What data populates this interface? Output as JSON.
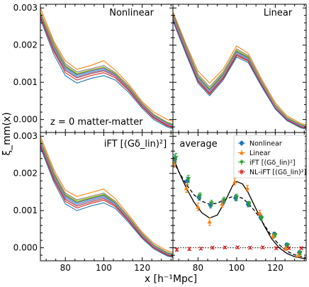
{
  "chart_data": {
    "type": "line",
    "ylabel": "ξ_mm(x)",
    "xlabel": "x [h⁻¹Mpc]",
    "xlim": [
      67,
      136
    ],
    "ylim": [
      -0.00035,
      0.0031
    ],
    "xticks": [
      80,
      100,
      120
    ],
    "xtick_labels": [
      "80",
      "100",
      "120"
    ],
    "yticks": [
      0,
      0.001,
      0.002,
      0.003
    ],
    "ytick_labels": [
      "0.000",
      "0.001",
      "0.002",
      "0.003"
    ],
    "annotation": "z = 0  matter-matter",
    "panels": [
      {
        "title": "Nonlinear",
        "x": [
          67,
          74,
          80,
          86,
          93,
          100,
          106,
          113,
          120,
          126,
          133,
          136
        ],
        "series": [
          {
            "color": "#ff7f0e",
            "values": [
              0.003,
              0.0021,
              0.00158,
              0.00135,
              0.00145,
              0.00158,
              0.00133,
              0.00095,
              0.00048,
              0.0002,
              0.0,
              -5e-05
            ]
          },
          {
            "color": "#7f7f7f",
            "values": [
              0.0029,
              0.00205,
              0.0015,
              0.00128,
              0.00136,
              0.00145,
              0.00126,
              0.0009,
              0.00044,
              0.00014,
              -7e-05,
              -0.00012
            ]
          },
          {
            "color": "#bcbd22",
            "values": [
              0.0029,
              0.00202,
              0.00146,
              0.00124,
              0.00133,
              0.00141,
              0.00124,
              0.00088,
              0.00042,
              0.00012,
              -9e-05,
              -0.00014
            ]
          },
          {
            "color": "#2ca02c",
            "values": [
              0.00285,
              0.00198,
              0.00143,
              0.00122,
              0.00131,
              0.00139,
              0.00122,
              0.00086,
              0.00041,
              0.00011,
              -0.0001,
              -0.00015
            ]
          },
          {
            "color": "#9467bd",
            "values": [
              0.00283,
              0.00196,
              0.00141,
              0.0012,
              0.0013,
              0.00138,
              0.00121,
              0.00085,
              0.0004,
              0.0001,
              -0.00011,
              -0.00016
            ]
          },
          {
            "color": "#17becf",
            "values": [
              0.0028,
              0.00193,
              0.00138,
              0.00117,
              0.00127,
              0.00135,
              0.00119,
              0.00084,
              0.00039,
              9e-05,
              -0.00012,
              -0.00017
            ]
          },
          {
            "color": "#e377c2",
            "values": [
              0.0028,
              0.0019,
              0.00135,
              0.00114,
              0.00125,
              0.00133,
              0.00118,
              0.00083,
              0.00038,
              8e-05,
              -0.00013,
              -0.00018
            ]
          },
          {
            "color": "#8c564b",
            "values": [
              0.00278,
              0.00187,
              0.00132,
              0.00112,
              0.00123,
              0.00131,
              0.00116,
              0.00081,
              0.00036,
              6e-05,
              -0.00015,
              -0.0002
            ]
          },
          {
            "color": "#d62728",
            "values": [
              0.00275,
              0.00183,
              0.00126,
              0.00106,
              0.00118,
              0.00126,
              0.00112,
              0.00078,
              0.00034,
              4e-05,
              -0.00017,
              -0.00022
            ]
          },
          {
            "color": "#1f77b4",
            "values": [
              0.0027,
              0.00175,
              0.00118,
              0.00098,
              0.0011,
              0.00118,
              0.00106,
              0.00073,
              0.0003,
              0.0,
              -0.0002,
              -0.00025
            ]
          }
        ]
      },
      {
        "title": "Linear",
        "x": [
          67,
          74,
          80,
          86,
          93,
          100,
          106,
          113,
          120,
          126,
          133,
          136
        ],
        "series": [
          {
            "color": "#ff7f0e",
            "values": [
              0.0029,
              0.002,
              0.0013,
              0.00098,
              0.00135,
              0.00198,
              0.00178,
              0.00108,
              0.00045,
              0.0001,
              -0.0001,
              -0.00014
            ]
          },
          {
            "color": "#7f7f7f",
            "values": [
              0.00285,
              0.00195,
              0.00122,
              0.00088,
              0.00128,
              0.0019,
              0.00172,
              0.00103,
              0.0004,
              6e-05,
              -0.00013,
              -0.00017
            ]
          },
          {
            "color": "#bcbd22",
            "values": [
              0.0028,
              0.00192,
              0.00118,
              0.00084,
              0.00125,
              0.00187,
              0.00169,
              0.00101,
              0.00038,
              5e-05,
              -0.00014,
              -0.00018
            ]
          },
          {
            "color": "#2ca02c",
            "values": [
              0.0028,
              0.0019,
              0.00115,
              0.00081,
              0.00122,
              0.00184,
              0.00167,
              0.00099,
              0.00036,
              4e-05,
              -0.00015,
              -0.00019
            ]
          },
          {
            "color": "#9467bd",
            "values": [
              0.00278,
              0.00188,
              0.00113,
              0.00079,
              0.0012,
              0.00182,
              0.00165,
              0.00098,
              0.00035,
              3e-05,
              -0.00016,
              -0.0002
            ]
          },
          {
            "color": "#17becf",
            "values": [
              0.00275,
              0.00185,
              0.0011,
              0.00076,
              0.00118,
              0.0018,
              0.00163,
              0.00096,
              0.00034,
              2e-05,
              -0.00017,
              -0.00021
            ]
          },
          {
            "color": "#e377c2",
            "values": [
              0.00273,
              0.00183,
              0.00108,
              0.00074,
              0.00116,
              0.00178,
              0.00161,
              0.00095,
              0.00033,
              1e-05,
              -0.00018,
              -0.00022
            ]
          },
          {
            "color": "#8c564b",
            "values": [
              0.0027,
              0.0018,
              0.00105,
              0.00071,
              0.00113,
              0.00175,
              0.00159,
              0.00093,
              0.00031,
              0.0,
              -0.00019,
              -0.00023
            ]
          },
          {
            "color": "#d62728",
            "values": [
              0.00268,
              0.00177,
              0.00102,
              0.00068,
              0.0011,
              0.00172,
              0.00157,
              0.00091,
              0.0003,
              -1e-05,
              -0.0002,
              -0.00024
            ]
          },
          {
            "color": "#1f77b4",
            "values": [
              0.00265,
              0.00173,
              0.00098,
              0.00064,
              0.00106,
              0.00168,
              0.00153,
              0.00088,
              0.00028,
              -3e-05,
              -0.00022,
              -0.00026
            ]
          }
        ]
      },
      {
        "title": "iFT [(Gδ_lin)²]",
        "x": [
          67,
          74,
          80,
          86,
          93,
          100,
          106,
          113,
          120,
          126,
          133,
          136
        ],
        "series": [
          {
            "color": "#ff7f0e",
            "values": [
              0.003,
              0.0021,
              0.00155,
              0.00138,
              0.00148,
              0.00158,
              0.00132,
              0.00088,
              0.00042,
              0.00012,
              -8e-05,
              -0.00012
            ]
          },
          {
            "color": "#7f7f7f",
            "values": [
              0.00292,
              0.00203,
              0.00147,
              0.00129,
              0.00138,
              0.00147,
              0.00125,
              0.00083,
              0.00038,
              8e-05,
              -0.00012,
              -0.00016
            ]
          },
          {
            "color": "#bcbd22",
            "values": [
              0.0029,
              0.002,
              0.00144,
              0.00126,
              0.00135,
              0.00144,
              0.00123,
              0.00081,
              0.00036,
              7e-05,
              -0.00013,
              -0.00017
            ]
          },
          {
            "color": "#2ca02c",
            "values": [
              0.00287,
              0.00198,
              0.00141,
              0.00123,
              0.00133,
              0.00142,
              0.00121,
              0.0008,
              0.00035,
              6e-05,
              -0.00014,
              -0.00018
            ]
          },
          {
            "color": "#9467bd",
            "values": [
              0.00285,
              0.00195,
              0.00139,
              0.00121,
              0.00131,
              0.0014,
              0.0012,
              0.00079,
              0.00034,
              5e-05,
              -0.00015,
              -0.00019
            ]
          },
          {
            "color": "#17becf",
            "values": [
              0.00282,
              0.00192,
              0.00136,
              0.00118,
              0.00128,
              0.00137,
              0.00118,
              0.00077,
              0.00033,
              4e-05,
              -0.00016,
              -0.0002
            ]
          },
          {
            "color": "#e377c2",
            "values": [
              0.0028,
              0.0019,
              0.00133,
              0.00115,
              0.00126,
              0.00135,
              0.00116,
              0.00076,
              0.00032,
              3e-05,
              -0.00017,
              -0.00021
            ]
          },
          {
            "color": "#8c564b",
            "values": [
              0.00277,
              0.00187,
              0.0013,
              0.00112,
              0.00123,
              0.00132,
              0.00114,
              0.00074,
              0.0003,
              1e-05,
              -0.00018,
              -0.00022
            ]
          },
          {
            "color": "#d62728",
            "values": [
              0.00274,
              0.00183,
              0.00125,
              0.00107,
              0.00119,
              0.00128,
              0.00111,
              0.00072,
              0.00028,
              0.0,
              -0.0002,
              -0.00024
            ]
          },
          {
            "color": "#1f77b4",
            "values": [
              0.0027,
              0.00177,
              0.00118,
              0.001,
              0.00112,
              0.00121,
              0.00106,
              0.00068,
              0.00025,
              -3e-05,
              -0.00022,
              -0.00026
            ]
          }
        ]
      },
      {
        "title": "average",
        "legend_position": "top-right",
        "series": [
          {
            "name": "Nonlinear",
            "color": "#1f77b4",
            "marker": "circle",
            "x": [
              68,
              74.5,
              80.5,
              86.5,
              93,
              99.5,
              106,
              112.5,
              119.5,
              126,
              132.5
            ],
            "values": [
              0.00238,
              0.0018,
              0.00136,
              0.00115,
              0.00124,
              0.00134,
              0.00117,
              0.00082,
              0.00037,
              8e-05,
              -0.00013
            ],
            "errors": [
              0.00012,
              0.0001,
              8e-05,
              8e-05,
              8e-05,
              8e-05,
              7e-05,
              6e-05,
              5e-05,
              5e-05,
              5e-05
            ]
          },
          {
            "name": "Linear",
            "color": "#ff7f0e",
            "marker": "triangle-up",
            "x": [
              67.5,
              74,
              80,
              86,
              92.5,
              99,
              105.5,
              112,
              119,
              125.5,
              132
            ],
            "values": [
              0.00228,
              0.0016,
              0.0011,
              0.0007,
              0.00118,
              0.00178,
              0.0016,
              0.00094,
              0.00032,
              -2e-05,
              -0.0002
            ],
            "errors": [
              0.00012,
              0.00011,
              0.0001,
              0.0001,
              9e-05,
              9e-05,
              8e-05,
              7e-05,
              6e-05,
              5e-05,
              5e-05
            ]
          },
          {
            "name": "iFT [(Gδ_lin)²]",
            "color": "#2ca02c",
            "marker": "triangle-down",
            "x": [
              68.5,
              75,
              81,
              87,
              93.5,
              100,
              106.5,
              113,
              120,
              126.5,
              133
            ],
            "values": [
              0.00242,
              0.00185,
              0.0014,
              0.0012,
              0.00128,
              0.00136,
              0.00118,
              0.00079,
              0.00034,
              6e-05,
              -0.00014
            ],
            "errors": [
              0.00012,
              0.0001,
              8e-05,
              8e-05,
              8e-05,
              8e-05,
              7e-05,
              6e-05,
              5e-05,
              5e-05,
              5e-05
            ]
          },
          {
            "name": "NL-iFT [(Gδ_lin)²]",
            "color": "#d62728",
            "marker": "x",
            "x": [
              69,
              75.5,
              81.5,
              87.5,
              94,
              100.5,
              107,
              113.5,
              120.5,
              127,
              133.5
            ],
            "values": [
              -5e-05,
              -3e-05,
              -2e-05,
              0.0,
              1e-05,
              1e-05,
              0.0,
              1e-05,
              -1e-05,
              -1e-05,
              -1e-05
            ],
            "errors": [
              4e-05,
              4e-05,
              3e-05,
              3e-05,
              3e-05,
              3e-05,
              3e-05,
              3e-05,
              3e-05,
              3e-05,
              3e-05
            ]
          }
        ],
        "model_solid": {
          "x": [
            67,
            70,
            74,
            78,
            82,
            86,
            90,
            94,
            98,
            100,
            103,
            106,
            110,
            114,
            118,
            122,
            126,
            130,
            134,
            136
          ],
          "values": [
            0.00245,
            0.00205,
            0.0016,
            0.00122,
            0.00094,
            0.0008,
            0.00088,
            0.00125,
            0.00168,
            0.00178,
            0.00172,
            0.00148,
            0.00105,
            0.00062,
            0.00025,
            0.0,
            -0.00015,
            -0.00024,
            -0.00028,
            -0.00029
          ]
        },
        "model_dashed": {
          "x": [
            67,
            70,
            74,
            78,
            82,
            86,
            90,
            94,
            98,
            100,
            103,
            106,
            110,
            114,
            118,
            122,
            126,
            130,
            134,
            136
          ],
          "values": [
            0.00235,
            0.00205,
            0.0017,
            0.00142,
            0.00125,
            0.00117,
            0.0012,
            0.0013,
            0.00138,
            0.00139,
            0.00133,
            0.0012,
            0.00095,
            0.00064,
            0.00032,
            8e-05,
            -9e-05,
            -0.00019,
            -0.00024,
            -0.00026
          ]
        },
        "zero_line": 0
      }
    ]
  }
}
